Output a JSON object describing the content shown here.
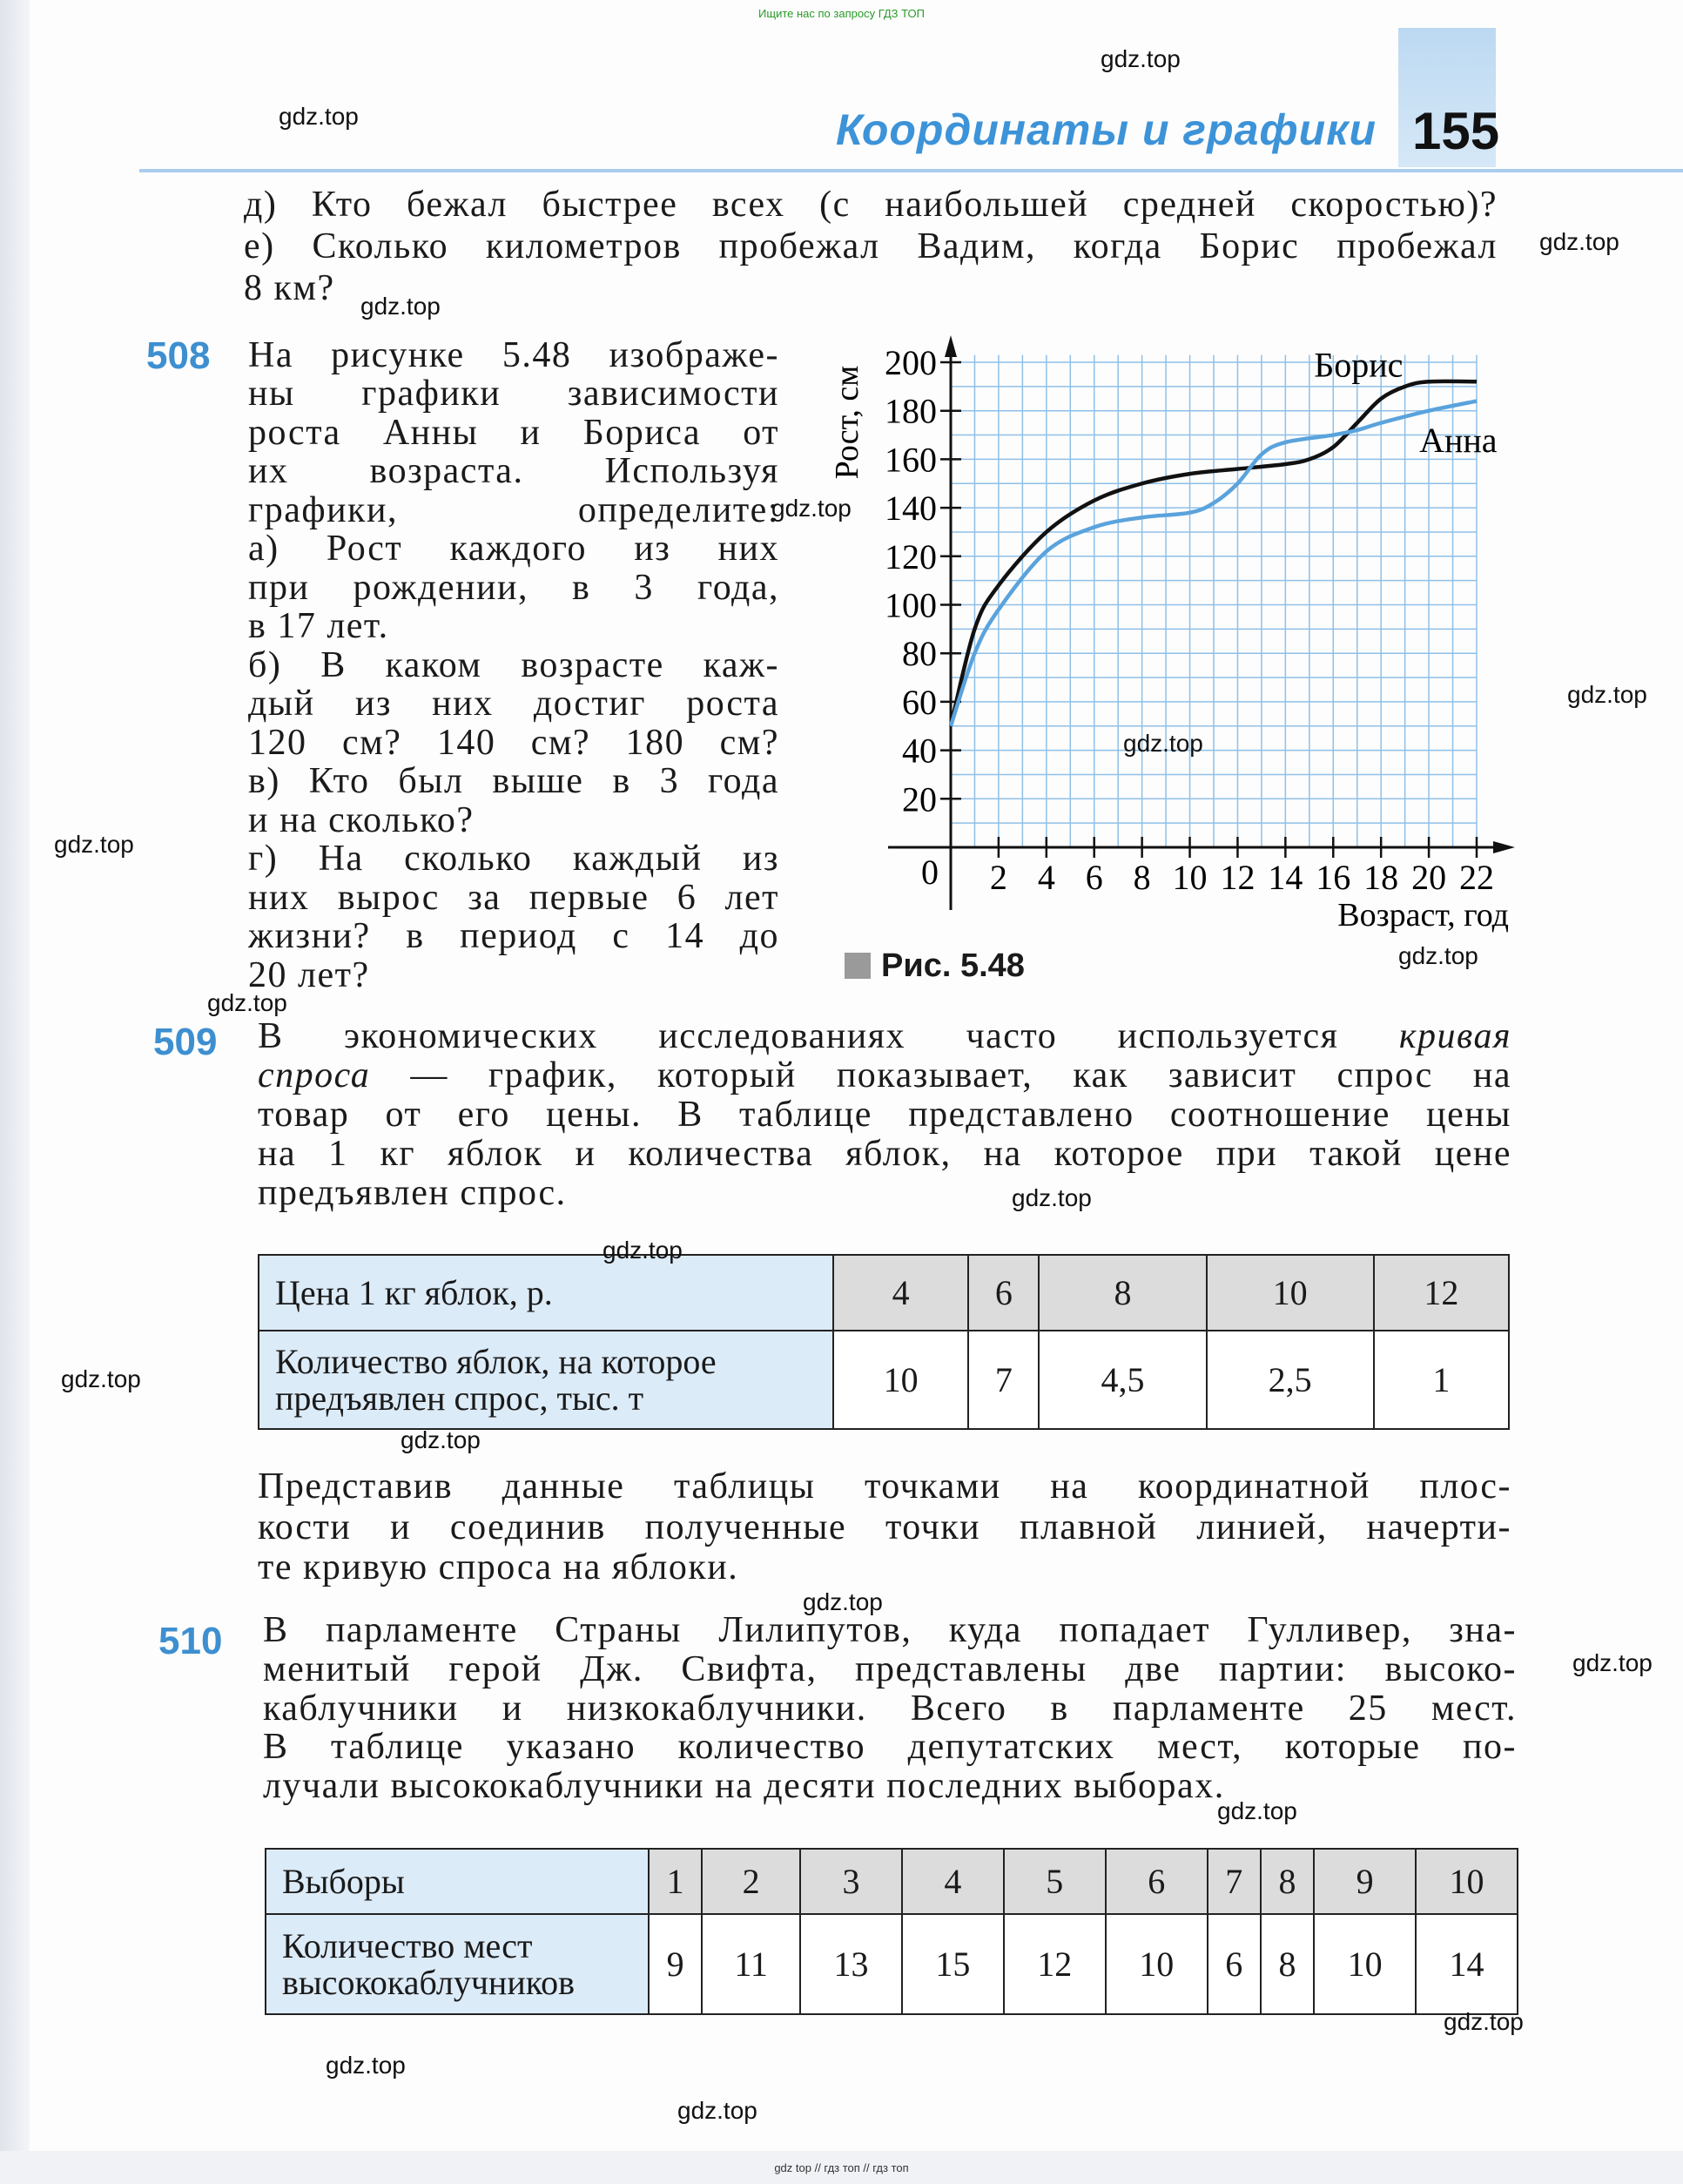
{
  "top_tip": "Ищите нас по запросу ГДЗ ТОП",
  "header": {
    "title": "Координаты и графики",
    "page_number": "155"
  },
  "watermark": "gdz.top",
  "footer": "gdz top // гдз топ // гдз топ",
  "intro_lines": [
    "д) Кто бежал быстрее всех (с наибольшей средней скоростью)?",
    "е) Сколько километров пробежал Вадим, когда Борис пробежал",
    "8 км?"
  ],
  "task508": {
    "number": "508",
    "lines": [
      "На рисунке 5.48 изображе-",
      "ны графики зависимости",
      "роста Анны и Бориса от",
      "их возраста. Используя",
      "графики, определите:",
      "а) Рост каждого из них",
      "при рождении, в 3 года,",
      "в 17 лет.",
      "б) В каком возрасте каж-",
      "дый из них достиг роста",
      "120 см? 140 см? 180 см?",
      "в) Кто был выше в 3 года",
      "и на сколько?",
      "г) На сколько каждый из",
      "них вырос за первые 6 лет",
      "жизни? в период с 14 до",
      "20 лет?"
    ],
    "figure_caption": "Рис. 5.48"
  },
  "chart_data": {
    "type": "line",
    "xlabel": "Возраст, год",
    "ylabel": "Рост, см",
    "xlim": [
      0,
      22
    ],
    "ylim": [
      0,
      200
    ],
    "x_ticks": [
      2,
      4,
      6,
      8,
      10,
      12,
      14,
      16,
      18,
      20,
      22
    ],
    "y_ticks": [
      20,
      40,
      60,
      80,
      100,
      120,
      140,
      160,
      180,
      200
    ],
    "origin_label": "0",
    "grid": true,
    "series": [
      {
        "name": "Борис",
        "color": "#111111",
        "x": [
          0,
          1,
          2,
          4,
          6,
          8,
          10,
          12,
          14,
          15,
          16,
          17,
          18,
          19,
          20,
          22
        ],
        "y": [
          50,
          90,
          108,
          130,
          143,
          150,
          154,
          156,
          158,
          160,
          165,
          175,
          185,
          190,
          192,
          192
        ]
      },
      {
        "name": "Анна",
        "color": "#5aa3dc",
        "x": [
          0,
          1,
          2,
          4,
          6,
          8,
          10,
          11,
          12,
          13,
          14,
          16,
          17,
          18,
          20,
          22
        ],
        "y": [
          50,
          80,
          98,
          122,
          132,
          136,
          138,
          142,
          150,
          162,
          167,
          170,
          172,
          175,
          180,
          184
        ]
      }
    ]
  },
  "task509": {
    "number": "509",
    "lines": [
      {
        "text": "В экономических исследованиях часто используется ",
        "em": "кривая",
        "em_first": false
      },
      {
        "text": " — график, который показывает, как зависит спрос на",
        "em": "спроса",
        "em_first": true
      },
      {
        "text": "товар от его цены. В таблице представлено соотношение цены"
      },
      {
        "text": "на 1 кг яблок и количества яблок, на которое при такой цене"
      },
      {
        "text": "предъявлен спрос."
      }
    ],
    "table": {
      "rows": [
        {
          "header": "Цена 1 кг яблок, р.",
          "values": [
            "4",
            "6",
            "8",
            "10",
            "12"
          ]
        },
        {
          "header": "Количество яблок, на которое предъявлен спрос, тыс. т",
          "values": [
            "10",
            "7",
            "4,5",
            "2,5",
            "1"
          ]
        }
      ]
    },
    "after_lines": [
      "Представив данные таблицы точками на координатной плос-",
      "кости и соединив полученные точки плавной линией, начерти-",
      "те кривую спроса на яблоки."
    ]
  },
  "task510": {
    "number": "510",
    "lines": [
      "В парламенте Страны Лилипутов, куда попадает Гулливер, зна-",
      "менитый герой Дж. Свифта, представлены две партии: высоко-",
      "каблучники и низкокаблучники. Всего в парламенте 25 мест.",
      "В таблице указано количество депутатских мест, которые по-",
      "лучали высококаблучники на десяти последних выборах."
    ],
    "table": {
      "rows": [
        {
          "header": "Выборы",
          "values": [
            "1",
            "2",
            "3",
            "4",
            "5",
            "6",
            "7",
            "8",
            "9",
            "10"
          ]
        },
        {
          "header": "Количество мест высококаблучников",
          "values": [
            "9",
            "11",
            "13",
            "15",
            "12",
            "10",
            "6",
            "8",
            "10",
            "14"
          ]
        }
      ]
    }
  },
  "colors": {
    "accent_blue": "#3d93d8",
    "table_head_bg": "#dcebf8",
    "table_value_bg": "#dcdcdc"
  }
}
